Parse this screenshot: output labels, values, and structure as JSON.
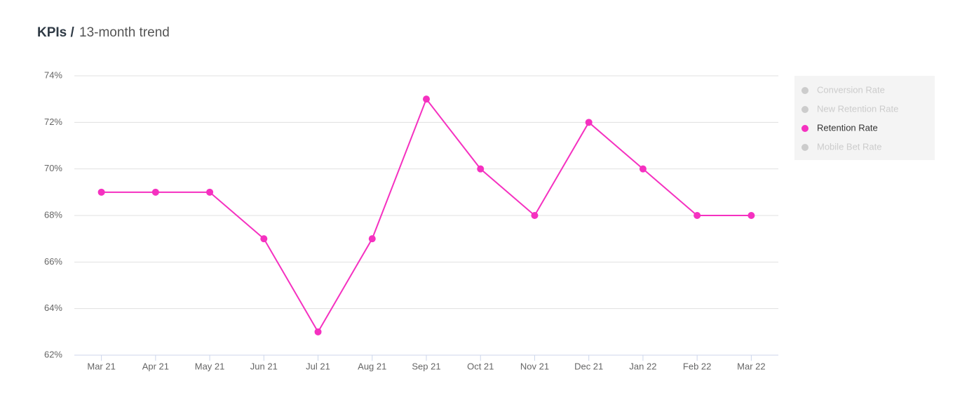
{
  "chart_data": {
    "type": "line",
    "title": "KPIs /",
    "subtitle": "13-month trend",
    "categories": [
      "Mar 21",
      "Apr 21",
      "May 21",
      "Jun 21",
      "Jul 21",
      "Aug 21",
      "Sep 21",
      "Oct 21",
      "Nov 21",
      "Dec 21",
      "Jan 22",
      "Feb 22",
      "Mar 22"
    ],
    "series": [
      {
        "name": "Conversion Rate",
        "color": "#cccccc",
        "hidden": true,
        "values": [
          null,
          null,
          null,
          null,
          null,
          null,
          null,
          null,
          null,
          null,
          null,
          null,
          null
        ]
      },
      {
        "name": "New Retention Rate",
        "color": "#cccccc",
        "hidden": true,
        "values": [
          null,
          null,
          null,
          null,
          null,
          null,
          null,
          null,
          null,
          null,
          null,
          null,
          null
        ]
      },
      {
        "name": "Retention Rate",
        "color": "#f531c0",
        "hidden": false,
        "values": [
          69,
          69,
          69,
          67,
          63,
          67,
          73,
          70,
          68,
          72,
          70,
          68,
          68
        ]
      },
      {
        "name": "Mobile Bet Rate",
        "color": "#cccccc",
        "hidden": true,
        "values": [
          null,
          null,
          null,
          null,
          null,
          null,
          null,
          null,
          null,
          null,
          null,
          null,
          null
        ]
      }
    ],
    "ylim": [
      62,
      74
    ],
    "yticks": [
      {
        "value": 62,
        "label": "62%"
      },
      {
        "value": 64,
        "label": "64%"
      },
      {
        "value": 66,
        "label": "66%"
      },
      {
        "value": 68,
        "label": "68%"
      },
      {
        "value": 70,
        "label": "70%"
      },
      {
        "value": 72,
        "label": "72%"
      },
      {
        "value": 74,
        "label": "74%"
      }
    ],
    "grid": true,
    "legend": "right"
  }
}
